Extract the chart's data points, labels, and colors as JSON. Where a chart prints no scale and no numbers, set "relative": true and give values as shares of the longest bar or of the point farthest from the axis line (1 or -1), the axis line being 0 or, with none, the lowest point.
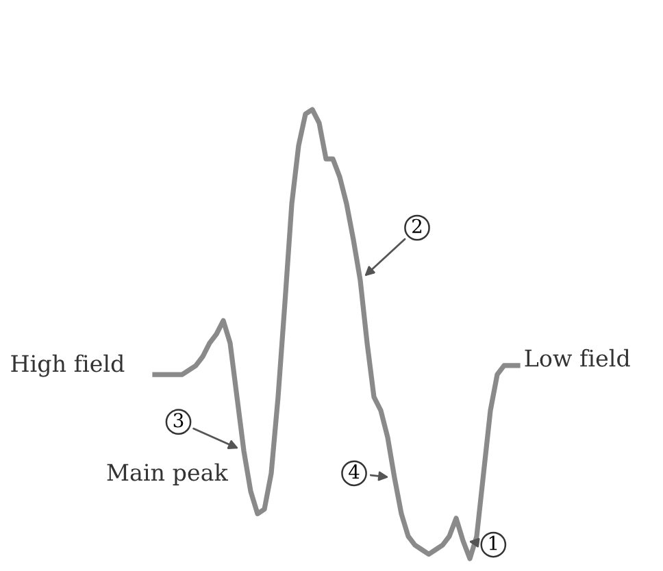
{
  "chart_data": {
    "type": "line",
    "relative": true,
    "color": "#8a8a8a",
    "categories": [
      null,
      null,
      null,
      null,
      null,
      null,
      null,
      null,
      null,
      null,
      null,
      null,
      null,
      null,
      null,
      null,
      null,
      null,
      null,
      null,
      null,
      null,
      null,
      null,
      null,
      null,
      null,
      null,
      null,
      null,
      null,
      null,
      null,
      null,
      null,
      null,
      null,
      null,
      null,
      null,
      null,
      null,
      null,
      null,
      null,
      null,
      null,
      null,
      null,
      null,
      null,
      null,
      null,
      null
    ],
    "values": [
      0.41,
      0.41,
      0.41,
      0.41,
      0.41,
      0.42,
      0.43,
      0.45,
      0.48,
      0.5,
      0.53,
      0.48,
      0.36,
      0.24,
      0.15,
      0.1,
      0.11,
      0.19,
      0.36,
      0.57,
      0.79,
      0.92,
      0.99,
      1,
      0.97,
      0.89,
      0.89,
      0.85,
      0.79,
      0.71,
      0.62,
      0.48,
      0.36,
      0.33,
      0.27,
      0.18,
      0.1,
      0.05,
      0.03,
      0.02,
      0.01,
      0.02,
      0.03,
      0.05,
      0.09,
      0.04,
      0,
      0.05,
      0.19,
      0.33,
      0.41,
      0.43,
      0.43,
      0.43
    ],
    "annotations": [
      "High field",
      "Low field",
      "Main peak",
      "1",
      "2",
      "3",
      "4"
    ]
  }
}
